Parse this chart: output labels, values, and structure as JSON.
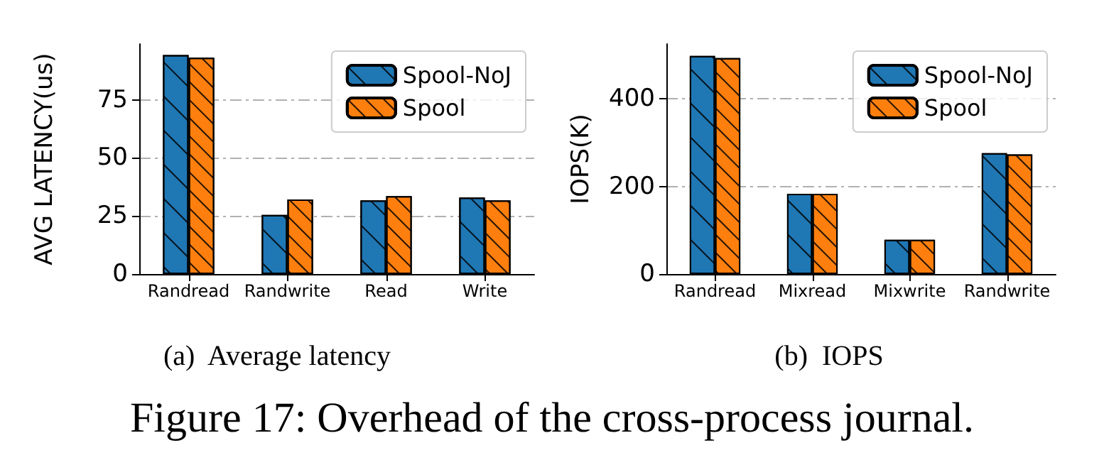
{
  "chart_data": [
    {
      "type": "bar",
      "title": "(a)  Average latency",
      "ylabel": "AVG LATENCY(us)",
      "categories": [
        "Randread",
        "Randwrite",
        "Read",
        "Write"
      ],
      "series": [
        {
          "name": "Spool-NoJ",
          "color": "#1f77b4",
          "values": [
            94.3,
            25.4,
            31.7,
            32.9
          ]
        },
        {
          "name": "Spool",
          "color": "#ff7f0e",
          "values": [
            93.1,
            32.1,
            33.5,
            31.7
          ]
        }
      ],
      "ylim": [
        0,
        99
      ],
      "yticks": [
        0,
        25,
        50,
        75
      ],
      "grid": "y",
      "legend": "top right"
    },
    {
      "type": "bar",
      "title": "(b)  IOPS",
      "ylabel": "IOPS(K)",
      "categories": [
        "Randread",
        "Mixread",
        "Mixwrite",
        "Randwrite"
      ],
      "series": [
        {
          "name": "Spool-NoJ",
          "color": "#1f77b4",
          "values": [
            498,
            183,
            78,
            276
          ]
        },
        {
          "name": "Spool",
          "color": "#ff7f0e",
          "values": [
            493,
            183,
            78,
            273
          ]
        }
      ],
      "ylim": [
        0,
        525
      ],
      "yticks": [
        0,
        200,
        400
      ],
      "grid": "y",
      "legend": "top right",
      "annotations": [
        "Figure 17:  Overhead of the cross-process journal."
      ]
    }
  ]
}
